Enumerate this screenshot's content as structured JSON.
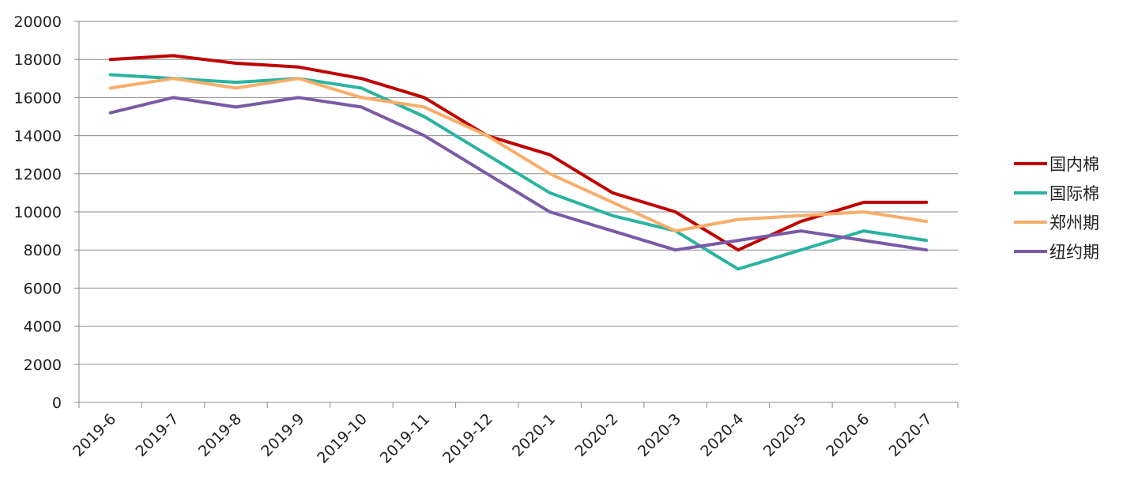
{
  "chart_data": {
    "type": "line",
    "categories": [
      "2019-6",
      "2019-7",
      "2019-8",
      "2019-9",
      "2019-10",
      "2019-11",
      "2019-12",
      "2020-1",
      "2020-2",
      "2020-3",
      "2020-4",
      "2020-5",
      "2020-6",
      "2020-7"
    ],
    "series": [
      {
        "name": "国内棉",
        "color": "#c00000",
        "values": [
          18000,
          18200,
          17800,
          17600,
          17000,
          16000,
          14000,
          13000,
          11000,
          10000,
          8000,
          9500,
          10500,
          10500
        ]
      },
      {
        "name": "国际棉",
        "color": "#2ab3a1",
        "values": [
          17200,
          17000,
          16800,
          17000,
          16500,
          15000,
          13000,
          11000,
          9800,
          9000,
          7000,
          8000,
          9000,
          8500
        ]
      },
      {
        "name": "郑州期",
        "color": "#f8ad6a",
        "values": [
          16500,
          17000,
          16500,
          17000,
          16000,
          15500,
          14000,
          12000,
          10500,
          9000,
          9600,
          9800,
          10000,
          9500
        ]
      },
      {
        "name": "纽约期",
        "color": "#7a5aa6",
        "values": [
          15200,
          16000,
          15500,
          16000,
          15500,
          14000,
          12000,
          10000,
          9000,
          8000,
          8500,
          9000,
          8500,
          8000
        ]
      }
    ],
    "ylim": [
      0,
      20000
    ],
    "yticks": [
      0,
      2000,
      4000,
      6000,
      8000,
      10000,
      12000,
      14000,
      16000,
      18000,
      20000
    ],
    "grid": true,
    "legend_position": "right"
  }
}
